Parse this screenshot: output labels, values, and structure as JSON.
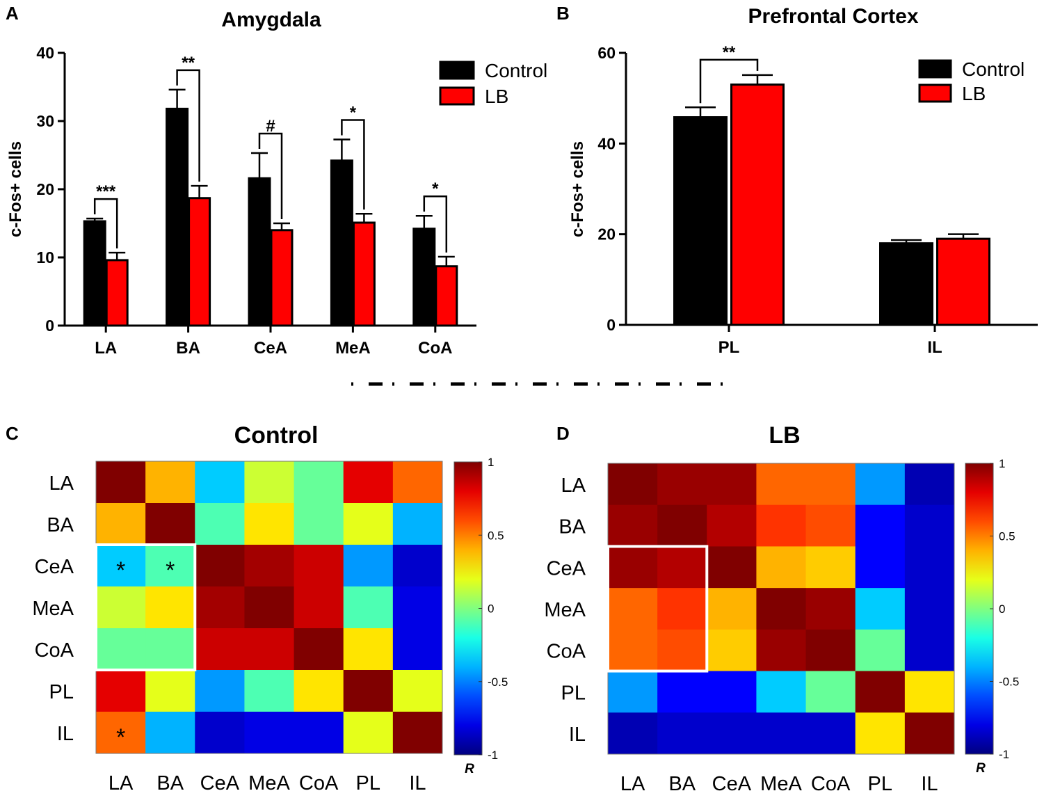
{
  "chart_data": [
    {
      "panel": "A",
      "type": "bar",
      "title": "Amygdala",
      "ylabel": "c-Fos+ cells",
      "xlabel": "",
      "ylim": [
        0,
        40
      ],
      "yticks": [
        "0",
        "10",
        "20",
        "30",
        "40"
      ],
      "categories": [
        "LA",
        "BA",
        "CeA",
        "MeA",
        "CoA"
      ],
      "series": [
        {
          "name": "Control",
          "color": "#000000",
          "values": [
            15.3,
            31.8,
            21.6,
            24.2,
            14.2
          ],
          "errors": [
            0.4,
            2.8,
            3.7,
            3.1,
            1.9
          ]
        },
        {
          "name": "LB",
          "color": "#ff0000",
          "values": [
            9.6,
            18.7,
            14.0,
            15.1,
            8.7
          ],
          "errors": [
            1.1,
            1.8,
            1.0,
            1.3,
            1.4
          ]
        }
      ],
      "significance": [
        "***",
        "**",
        "#",
        "*",
        "*"
      ],
      "legend": "top-right"
    },
    {
      "panel": "B",
      "type": "bar",
      "title": "Prefrontal Cortex",
      "ylabel": "c-Fos+ cells",
      "xlabel": "",
      "ylim": [
        0,
        60
      ],
      "yticks": [
        "0",
        "20",
        "40",
        "60"
      ],
      "categories": [
        "PL",
        "IL"
      ],
      "series": [
        {
          "name": "Control",
          "color": "#000000",
          "values": [
            45.8,
            18.0
          ],
          "errors": [
            2.2,
            0.7
          ]
        },
        {
          "name": "LB",
          "color": "#ff0000",
          "values": [
            53.0,
            19.0
          ],
          "errors": [
            2.1,
            1.0
          ]
        }
      ],
      "significance": [
        "**",
        ""
      ],
      "legend": "top-right"
    },
    {
      "panel": "C",
      "type": "heatmap",
      "title": "Control",
      "labels": [
        "LA",
        "BA",
        "CeA",
        "MeA",
        "CoA",
        "PL",
        "IL"
      ],
      "colorbar": {
        "label": "R",
        "min": -1,
        "max": 1,
        "ticks": [
          "1",
          "0.5",
          "0",
          "-0.5",
          "-1"
        ]
      },
      "matrix": [
        [
          1.0,
          0.4,
          -0.35,
          0.15,
          -0.05,
          0.8,
          0.55
        ],
        [
          0.4,
          1.0,
          -0.1,
          0.3,
          -0.05,
          0.2,
          -0.4
        ],
        [
          -0.35,
          -0.1,
          1.0,
          0.93,
          0.85,
          -0.45,
          -0.85
        ],
        [
          0.15,
          0.3,
          0.93,
          1.0,
          0.85,
          -0.1,
          -0.8
        ],
        [
          -0.05,
          -0.05,
          0.85,
          0.85,
          1.0,
          0.3,
          -0.8
        ],
        [
          0.8,
          0.2,
          -0.45,
          -0.1,
          0.3,
          1.0,
          0.2
        ],
        [
          0.55,
          -0.4,
          -0.85,
          -0.8,
          -0.8,
          0.2,
          1.0
        ]
      ],
      "significant": [
        [
          2,
          0
        ],
        [
          2,
          1
        ],
        [
          6,
          0
        ]
      ],
      "significance_mark": "*"
    },
    {
      "panel": "D",
      "type": "heatmap",
      "title": "LB",
      "labels": [
        "LA",
        "BA",
        "CeA",
        "MeA",
        "CoA",
        "PL",
        "IL"
      ],
      "colorbar": {
        "label": "R",
        "min": -1,
        "max": 1,
        "ticks": [
          "1",
          "0.5",
          "0",
          "-0.5",
          "-1"
        ]
      },
      "matrix": [
        [
          1.0,
          0.95,
          0.95,
          0.55,
          0.55,
          -0.45,
          -0.9
        ],
        [
          0.95,
          1.0,
          0.9,
          0.65,
          0.6,
          -0.75,
          -0.85
        ],
        [
          0.95,
          0.9,
          1.0,
          0.4,
          0.35,
          -0.75,
          -0.85
        ],
        [
          0.55,
          0.65,
          0.4,
          1.0,
          0.95,
          -0.35,
          -0.85
        ],
        [
          0.55,
          0.6,
          0.35,
          0.95,
          1.0,
          -0.05,
          -0.85
        ],
        [
          -0.45,
          -0.75,
          -0.75,
          -0.35,
          -0.05,
          1.0,
          0.3
        ],
        [
          -0.9,
          -0.85,
          -0.85,
          -0.85,
          -0.85,
          0.3,
          1.0
        ]
      ],
      "significant": [],
      "significance_mark": "*"
    }
  ],
  "panel_letters": [
    "A",
    "B",
    "C",
    "D"
  ]
}
